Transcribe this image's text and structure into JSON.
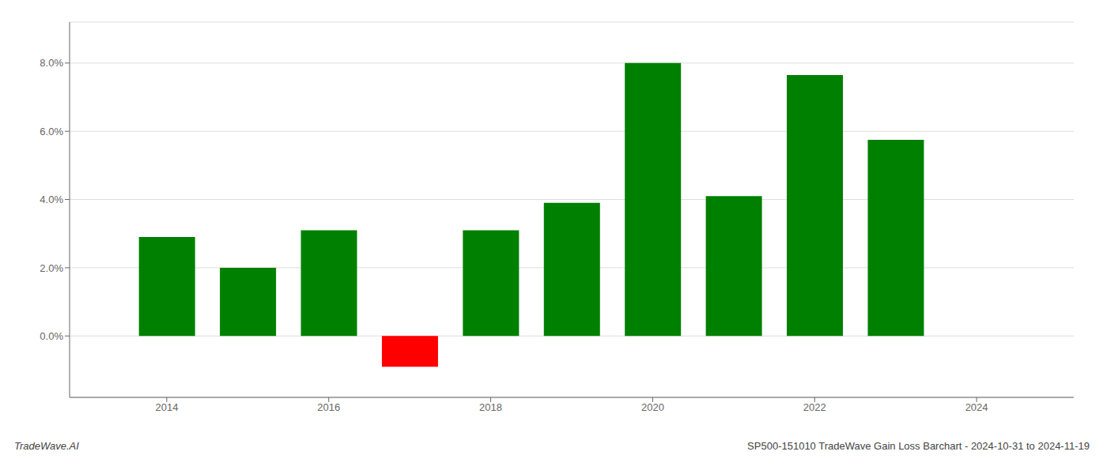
{
  "chart_data": {
    "type": "bar",
    "x": [
      2014,
      2015,
      2016,
      2017,
      2018,
      2019,
      2020,
      2021,
      2022,
      2023
    ],
    "values": [
      0.029,
      0.02,
      0.031,
      -0.009,
      0.031,
      0.039,
      0.08,
      0.041,
      0.0765,
      0.0575
    ],
    "colors": [
      "#008000",
      "#008000",
      "#008000",
      "#ff0000",
      "#008000",
      "#008000",
      "#008000",
      "#008000",
      "#008000",
      "#008000"
    ],
    "xlim": [
      2012.8,
      2025.2
    ],
    "xticks": [
      2014,
      2016,
      2018,
      2020,
      2022,
      2024
    ],
    "ylim": [
      -0.018,
      0.092
    ],
    "yticks": [
      {
        "value": 0.0,
        "label": "0.0%"
      },
      {
        "value": 0.02,
        "label": "2.0%"
      },
      {
        "value": 0.04,
        "label": "4.0%"
      },
      {
        "value": 0.06,
        "label": "6.0%"
      },
      {
        "value": 0.08,
        "label": "8.0%"
      }
    ],
    "grid": true,
    "annotations": [
      "TradeWave.AI",
      "SP500-151010 TradeWave Gain Loss Barchart - 2024-10-31 to 2024-11-19"
    ]
  }
}
